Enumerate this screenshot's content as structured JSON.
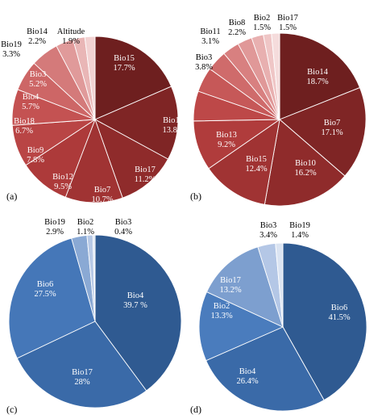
{
  "chart_data": [
    {
      "type": "pie",
      "panel": "(a)",
      "slices": [
        {
          "label": "Bio15",
          "value": 17.7,
          "text": "17.7%",
          "color": "#6e1f1f",
          "label_color": "#ffffff"
        },
        {
          "label": "Bio10",
          "value": 13.8,
          "text": "13.8%",
          "color": "#7f2525",
          "label_color": "#ffffff"
        },
        {
          "label": "Bio17",
          "value": 11.2,
          "text": "11.2%",
          "color": "#8f2b2b",
          "label_color": "#ffffff"
        },
        {
          "label": "Bio7",
          "value": 10.7,
          "text": "10.7%",
          "color": "#a03333",
          "label_color": "#ffffff"
        },
        {
          "label": "Bio12",
          "value": 9.5,
          "text": "9.5%",
          "color": "#ad3a3a",
          "label_color": "#ffffff"
        },
        {
          "label": "Bio9",
          "value": 7.8,
          "text": "7.8%",
          "color": "#b94545",
          "label_color": "#ffffff"
        },
        {
          "label": "Bio18",
          "value": 6.7,
          "text": "6.7%",
          "color": "#c45252",
          "label_color": "#ffffff"
        },
        {
          "label": "Bio4",
          "value": 5.7,
          "text": "5.7%",
          "color": "#cd6666",
          "label_color": "#ffffff"
        },
        {
          "label": "Bio3",
          "value": 5.2,
          "text": "5.2%",
          "color": "#d47a7a",
          "label_color": "#ffffff"
        },
        {
          "label": "Bio19",
          "value": 3.3,
          "text": "3.3%",
          "color": "#e09a9a",
          "label_color": "#000000"
        },
        {
          "label": "Bio14",
          "value": 2.2,
          "text": "2.2%",
          "color": "#e9b6b6",
          "label_color": "#000000"
        },
        {
          "label": "Altitude",
          "value": 1.9,
          "text": "1.9%",
          "color": "#f2d2d2",
          "label_color": "#000000"
        }
      ]
    },
    {
      "type": "pie",
      "panel": "(b)",
      "slices": [
        {
          "label": "Bio14",
          "value": 18.7,
          "text": "18.7%",
          "color": "#6e1f1f",
          "label_color": "#ffffff"
        },
        {
          "label": "Bio7",
          "value": 17.1,
          "text": "17.1%",
          "color": "#7f2525",
          "label_color": "#ffffff"
        },
        {
          "label": "Bio10",
          "value": 16.2,
          "text": "16.2%",
          "color": "#8f2b2b",
          "label_color": "#ffffff"
        },
        {
          "label": "Bio15",
          "value": 12.4,
          "text": "12.4%",
          "color": "#a03333",
          "label_color": "#ffffff"
        },
        {
          "label": "Bio13",
          "value": 9.2,
          "text": "9.2%",
          "color": "#b03c3c",
          "label_color": "#ffffff"
        },
        {
          "label": "",
          "value": 5.5,
          "text": "",
          "color": "#bd4848",
          "label_color": "#ffffff"
        },
        {
          "label": "",
          "value": 4.6,
          "text": "",
          "color": "#c65858",
          "label_color": "#ffffff"
        },
        {
          "label": "Bio3",
          "value": 3.8,
          "text": "3.8%",
          "color": "#cf6b6b",
          "label_color": "#000000"
        },
        {
          "label": "Bio11",
          "value": 3.1,
          "text": "3.1%",
          "color": "#d88080",
          "label_color": "#000000"
        },
        {
          "label": "",
          "value": 2.7,
          "text": "",
          "color": "#e09898",
          "label_color": "#000000"
        },
        {
          "label": "Bio8",
          "value": 2.2,
          "text": "2.2%",
          "color": "#e8b0b0",
          "label_color": "#000000"
        },
        {
          "label": "Bio2",
          "value": 1.5,
          "text": "1.5%",
          "color": "#efc6c6",
          "label_color": "#000000"
        },
        {
          "label": "Bio17",
          "value": 1.5,
          "text": "1.5%",
          "color": "#f5dcdc",
          "label_color": "#000000"
        }
      ]
    },
    {
      "type": "pie",
      "panel": "(c)",
      "slices": [
        {
          "label": "Bio4",
          "value": 39.7,
          "text": "39.7 %",
          "color": "#2f5a91",
          "label_color": "#ffffff"
        },
        {
          "label": "Bio17",
          "value": 28,
          "text": "28%",
          "color": "#3a6aa8",
          "label_color": "#ffffff"
        },
        {
          "label": "Bio6",
          "value": 27.5,
          "text": "27.5%",
          "color": "#4577b8",
          "label_color": "#ffffff"
        },
        {
          "label": "Bio19",
          "value": 2.9,
          "text": "2.9%",
          "color": "#8aa9d4",
          "label_color": "#000000"
        },
        {
          "label": "Bio2",
          "value": 1.1,
          "text": "1.1%",
          "color": "#b7c9e6",
          "label_color": "#000000"
        },
        {
          "label": "Bio3",
          "value": 0.4,
          "text": "0.4%",
          "color": "#dde6f3",
          "label_color": "#000000"
        }
      ]
    },
    {
      "type": "pie",
      "panel": "(d)",
      "slices": [
        {
          "label": "Bio6",
          "value": 41.5,
          "text": "41.5%",
          "color": "#2f5a91",
          "label_color": "#ffffff"
        },
        {
          "label": "Bio4",
          "value": 26.4,
          "text": "26.4%",
          "color": "#3a6aa8",
          "label_color": "#ffffff"
        },
        {
          "label": "Bio2",
          "value": 13.3,
          "text": "13.3%",
          "color": "#4a7cbd",
          "label_color": "#ffffff"
        },
        {
          "label": "Bio17",
          "value": 13.2,
          "text": "13.2%",
          "color": "#7d9fcf",
          "label_color": "#ffffff"
        },
        {
          "label": "Bio3",
          "value": 3.4,
          "text": "3.4%",
          "color": "#b4c7e6",
          "label_color": "#000000"
        },
        {
          "label": "Bio19",
          "value": 1.4,
          "text": "1.4%",
          "color": "#dbe4f2",
          "label_color": "#000000"
        }
      ]
    }
  ]
}
